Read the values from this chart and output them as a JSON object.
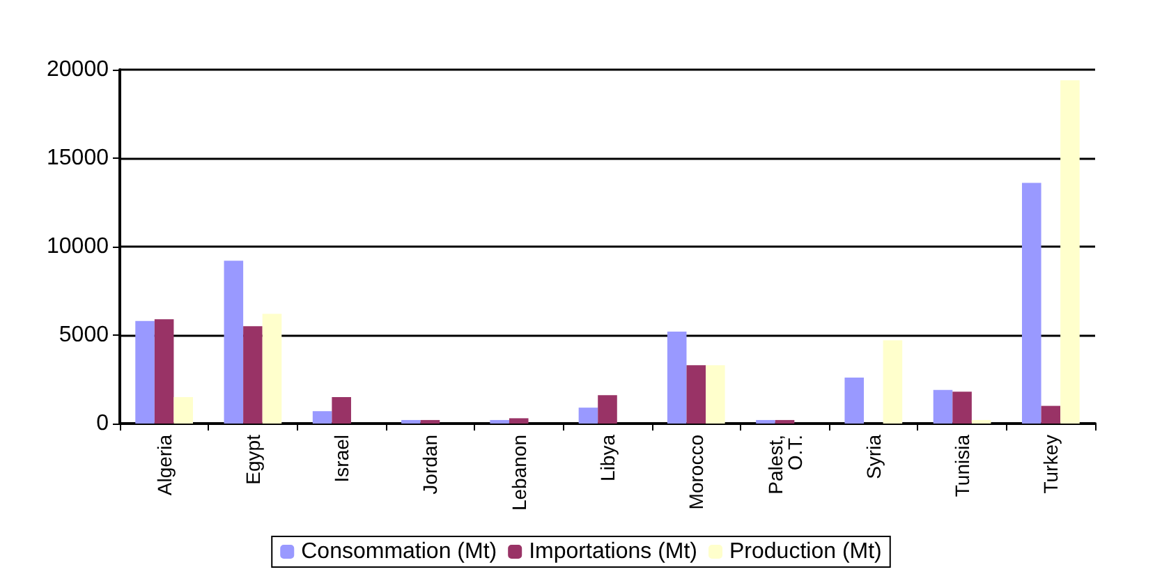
{
  "chart_data": {
    "type": "bar",
    "categories": [
      "Algeria",
      "Egypt",
      "Israel",
      "Jordan",
      "Lebanon",
      "Libya",
      "Morocco",
      "Palest,\nO.T.",
      "Syria",
      "Tunisia",
      "Turkey"
    ],
    "series": [
      {
        "name": "Consommation (Mt)",
        "color": "#9999ff",
        "values": [
          5800,
          9200,
          700,
          200,
          200,
          900,
          5200,
          200,
          2600,
          1900,
          13600
        ]
      },
      {
        "name": "Importations (Mt)",
        "color": "#993366",
        "values": [
          5900,
          5500,
          1500,
          200,
          300,
          1600,
          3300,
          200,
          0,
          1800,
          1000
        ]
      },
      {
        "name": "Production (Mt)",
        "color": "#ffffcc",
        "values": [
          1500,
          6200,
          0,
          0,
          0,
          0,
          3300,
          0,
          4700,
          200,
          19400
        ]
      }
    ],
    "ylim": [
      0,
      20000
    ],
    "yticks": [
      0,
      5000,
      10000,
      15000,
      20000
    ],
    "grid": "y",
    "legend": "bottom"
  }
}
